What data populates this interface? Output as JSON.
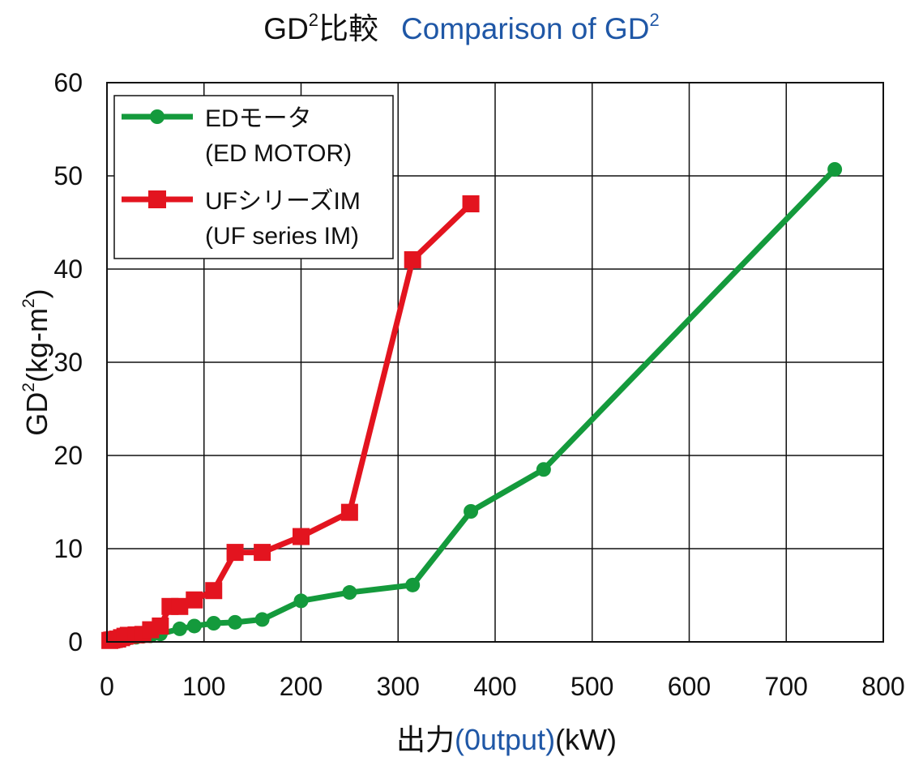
{
  "colors": {
    "text": "#111111",
    "accent_blue": "#1f57a6",
    "ed": "#149a3c",
    "uf": "#e3141f",
    "grid": "#111111",
    "background": "#ffffff"
  },
  "title": {
    "gd": "GD",
    "sup": "2",
    "jp": "比較",
    "en": "Comparison of GD",
    "en_sup": "2"
  },
  "axis": {
    "x": {
      "jp": "出力",
      "en": "(0utput)",
      "unit": "(kW)"
    },
    "y": {
      "gd": "GD",
      "sup": "2",
      "unit_start": "(kg-m",
      "unit_sup": "2",
      "unit_end": ")"
    }
  },
  "legend": {
    "items": [
      {
        "label_line1": "EDモータ",
        "label_line2": "(ED MOTOR)"
      },
      {
        "label_line1": "UFシリーズIM",
        "label_line2": "(UF series IM)"
      }
    ]
  },
  "chart_data": {
    "type": "line",
    "title": "GD²比較 Comparison of GD²",
    "xlabel": "出力(0utput)(kW)",
    "ylabel": "GD²(kg-m²)",
    "xlim": [
      0,
      800
    ],
    "ylim": [
      0,
      60
    ],
    "x_ticks": [
      0,
      100,
      200,
      300,
      400,
      500,
      600,
      700,
      800
    ],
    "y_ticks": [
      0,
      10,
      20,
      30,
      40,
      50,
      60
    ],
    "grid": true,
    "legend_position": "top-left",
    "series": [
      {
        "name": "EDモータ (ED MOTOR)",
        "marker": "circle",
        "x": [
          3,
          5,
          7.5,
          11,
          15,
          22,
          30,
          37,
          45,
          55,
          75,
          90,
          110,
          132,
          160,
          200,
          250,
          315,
          375,
          450,
          750
        ],
        "y": [
          0.15,
          0.2,
          0.25,
          0.3,
          0.35,
          0.4,
          0.5,
          0.6,
          0.65,
          0.85,
          1.4,
          1.7,
          2.0,
          2.1,
          2.4,
          4.4,
          5.3,
          6.1,
          14.0,
          18.5,
          50.7
        ]
      },
      {
        "name": "UFシリーズIM (UF series IM)",
        "marker": "square",
        "x": [
          3,
          5,
          7.5,
          11,
          15,
          18.5,
          22,
          30,
          37,
          45,
          55,
          65,
          75,
          90,
          110,
          132,
          160,
          200,
          250,
          315,
          375
        ],
        "y": [
          0.15,
          0.2,
          0.25,
          0.3,
          0.45,
          0.6,
          0.7,
          0.75,
          0.8,
          1.3,
          1.7,
          3.8,
          3.8,
          4.5,
          5.5,
          9.6,
          9.6,
          11.3,
          13.9,
          41.0,
          47.0
        ]
      }
    ]
  }
}
